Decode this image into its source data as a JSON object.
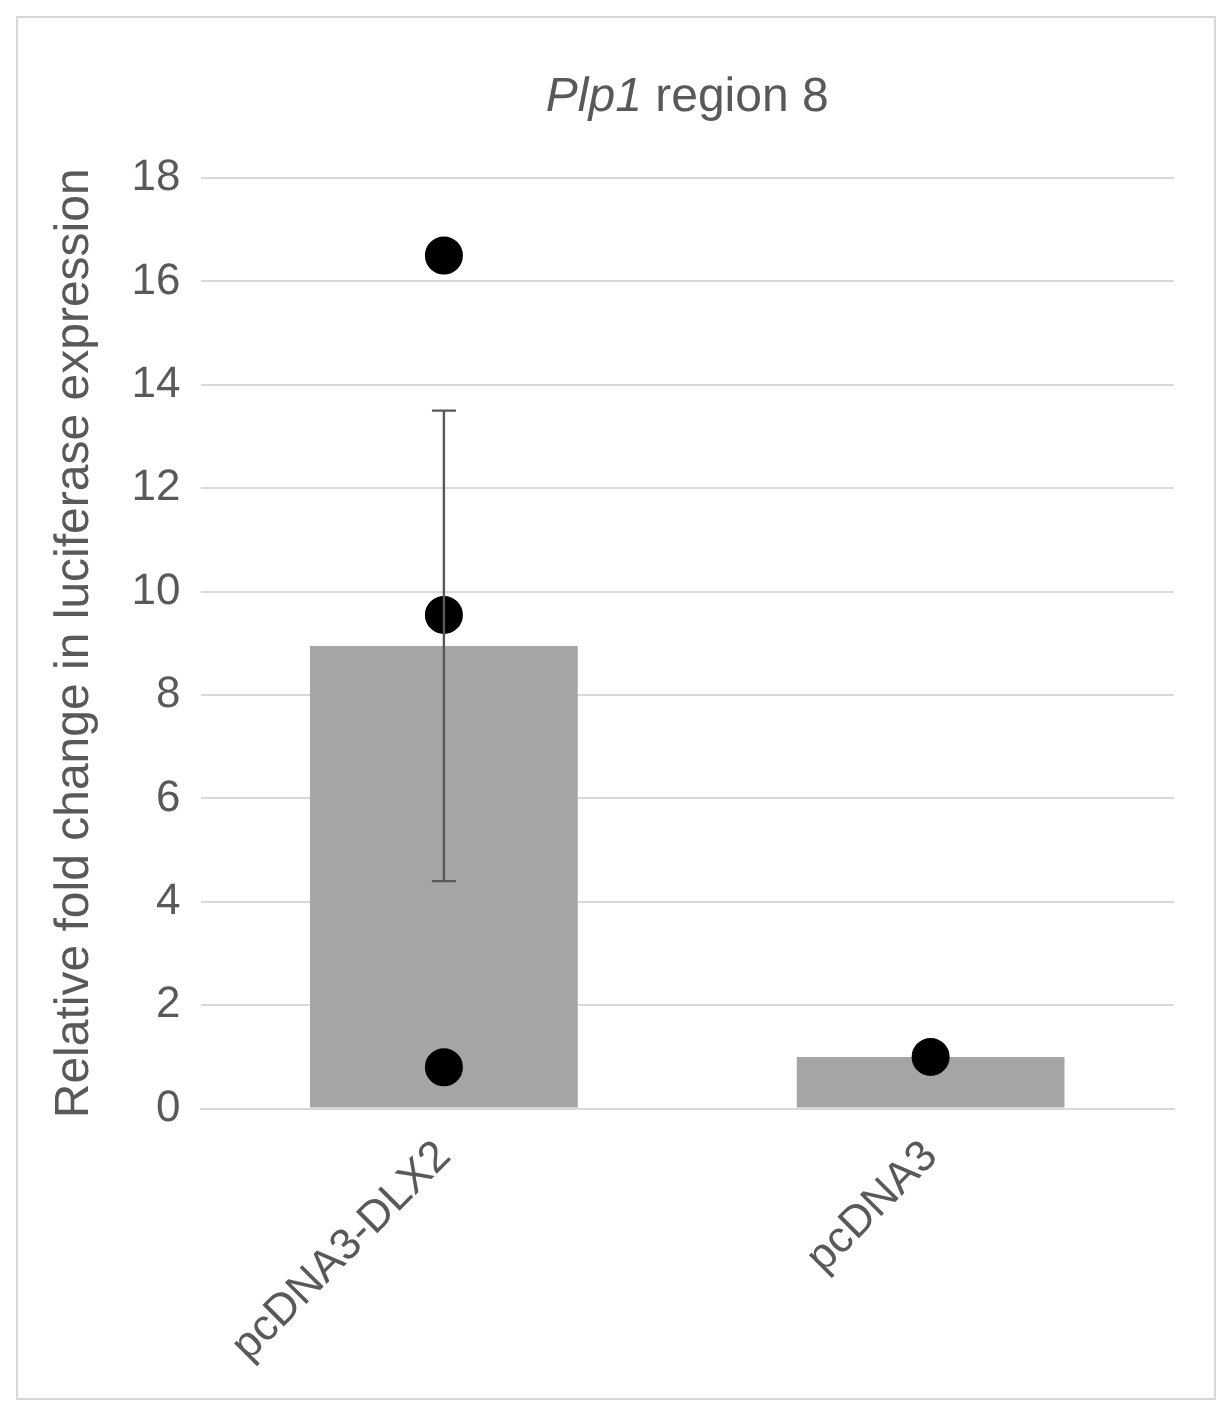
{
  "chart_data": {
    "type": "bar",
    "title": "Plp1 region 8",
    "ylabel": "Relative fold change in luciferase expression",
    "categories": [
      "pcDNA3-DLX2",
      "pcDNA3"
    ],
    "series": [
      {
        "color": "#a5a5a5",
        "values": [
          8.95,
          1.0
        ],
        "errors": [
          [
            4.4,
            13.5
          ],
          null
        ]
      },
      {
        "type": "scatter",
        "color": "#000000",
        "x": [
          "pcDNA3-DLX2",
          "pcDNA3-DLX2",
          "pcDNA3-DLX2",
          "pcDNA3"
        ],
        "values": [
          16.5,
          9.55,
          0.8,
          1.0
        ]
      }
    ],
    "ylim": [
      0,
      18
    ],
    "yticks": [
      0,
      2,
      4,
      6,
      8,
      10,
      12,
      14,
      16,
      18
    ],
    "grid": "y",
    "legend": false,
    "marker": "circle"
  }
}
